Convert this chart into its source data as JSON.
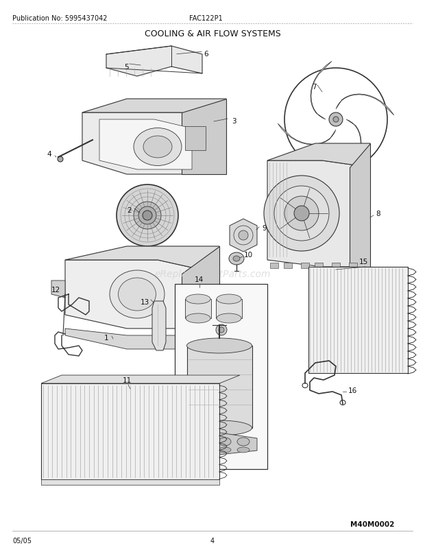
{
  "pub_no": "Publication No: 5995437042",
  "model": "FAC122P1",
  "title": "COOLING & AIR FLOW SYSTEMS",
  "date": "05/05",
  "page": "4",
  "diagram_id": "M40M0002",
  "watermark": "eReplacementParts.com",
  "bg_color": "#ffffff",
  "text_color": "#000000",
  "lc": "#555555",
  "lc_dark": "#333333",
  "lc_light": "#888888",
  "title_fontsize": 9,
  "header_fontsize": 7,
  "footer_fontsize": 7,
  "label_fontsize": 7.5
}
